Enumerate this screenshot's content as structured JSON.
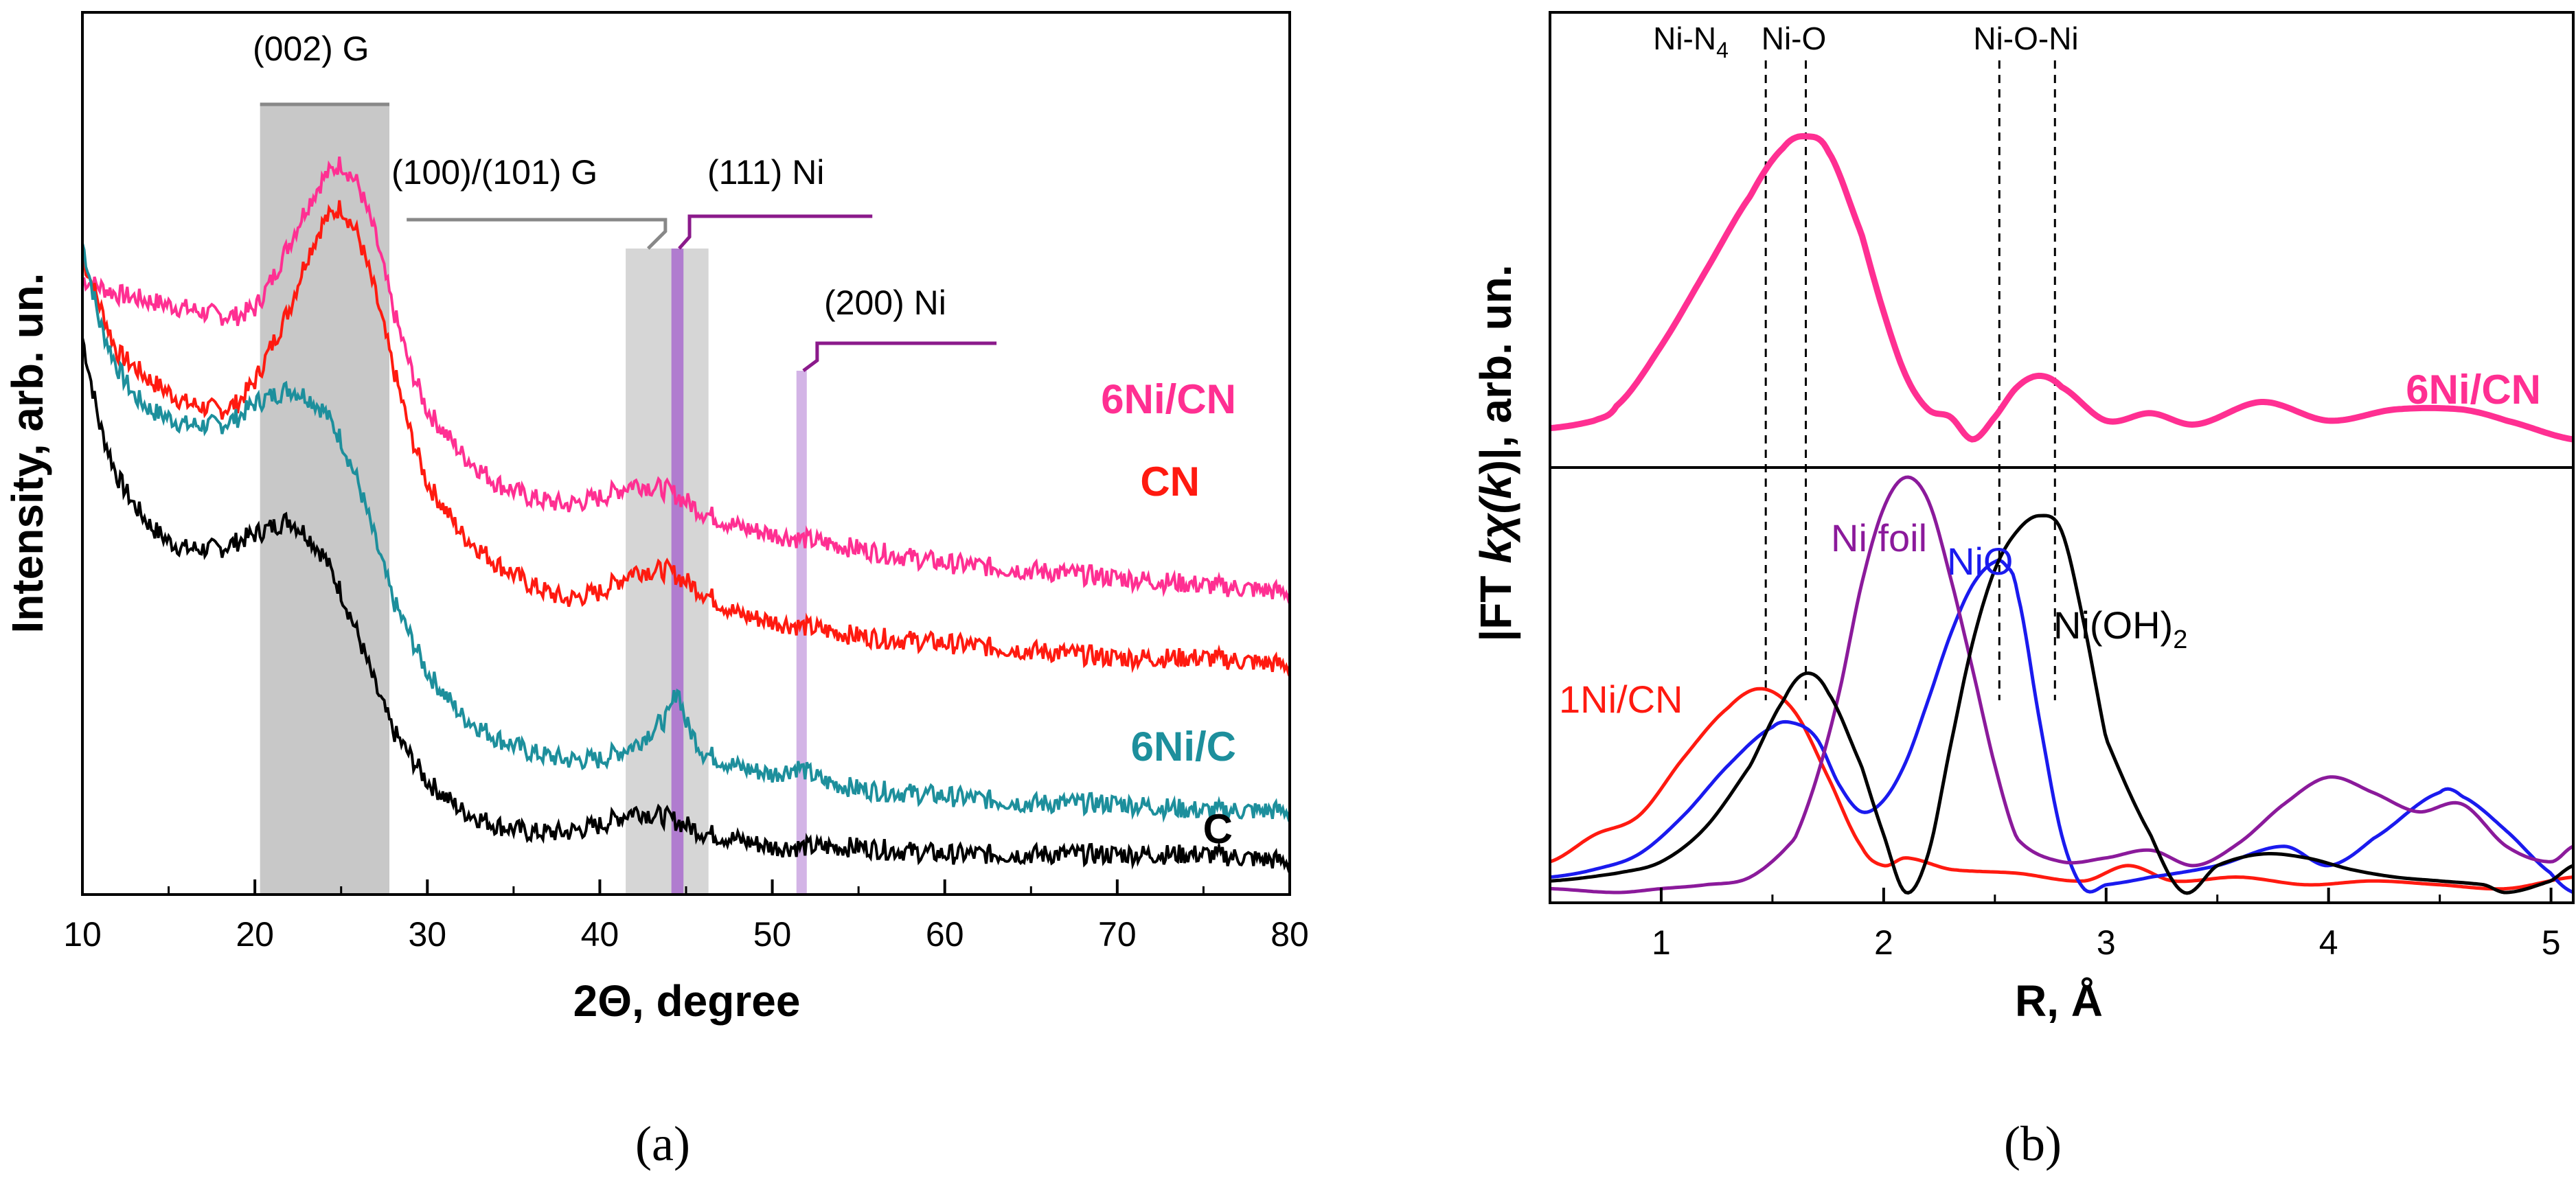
{
  "chart_data": [
    {
      "panel": "a",
      "type": "line",
      "caption": "(a)",
      "xlabel": "2Θ, degree",
      "ylabel": "Intensity, arb. un.",
      "xlim": [
        10,
        80
      ],
      "xticks": [
        "10",
        "20",
        "30",
        "40",
        "50",
        "60",
        "70",
        "80"
      ],
      "yticks": [],
      "colors": {
        "6Ni/CN": "#ff2f92",
        "CN": "#ff1a10",
        "6Ni/C": "#1d8f9c",
        "C": "#000000",
        "band": "#c8c8c8",
        "ni_band": "#b07ccf",
        "ni_line": "#8b1a8b",
        "g_line": "#888888"
      },
      "series": [
        {
          "name": "6Ni/CN",
          "x": [
            10,
            12,
            14,
            16,
            18,
            19,
            20,
            21,
            22,
            23,
            24,
            25,
            26,
            27,
            28,
            29,
            30,
            32,
            34,
            36,
            38,
            40,
            42,
            44,
            46,
            48,
            50,
            55,
            60,
            65,
            70,
            75,
            80
          ],
          "y": [
            0.8,
            0.78,
            0.77,
            0.76,
            0.75,
            0.75,
            0.76,
            0.8,
            0.85,
            0.9,
            0.94,
            0.96,
            0.93,
            0.86,
            0.76,
            0.68,
            0.62,
            0.56,
            0.52,
            0.5,
            0.49,
            0.5,
            0.52,
            0.51,
            0.48,
            0.46,
            0.45,
            0.43,
            0.41,
            0.4,
            0.39,
            0.38,
            0.37
          ]
        },
        {
          "name": "CN",
          "x": [
            10,
            12,
            14,
            16,
            18,
            19,
            20,
            21,
            22,
            23,
            24,
            25,
            26,
            27,
            28,
            29,
            30,
            32,
            34,
            36,
            38,
            40,
            42,
            44,
            46,
            48,
            50,
            55,
            60,
            65,
            70,
            75,
            80
          ],
          "y": [
            0.83,
            0.7,
            0.66,
            0.63,
            0.62,
            0.63,
            0.66,
            0.71,
            0.76,
            0.83,
            0.88,
            0.9,
            0.86,
            0.78,
            0.68,
            0.59,
            0.52,
            0.45,
            0.41,
            0.38,
            0.36,
            0.37,
            0.4,
            0.4,
            0.37,
            0.34,
            0.33,
            0.31,
            0.3,
            0.29,
            0.28,
            0.28,
            0.27
          ]
        },
        {
          "name": "6Ni/C",
          "x": [
            10,
            11,
            12,
            13,
            14,
            16,
            18,
            19,
            20,
            21,
            22,
            23,
            24,
            25,
            26,
            27,
            28,
            30,
            32,
            34,
            36,
            38,
            40,
            42,
            43,
            44,
            44.5,
            45,
            46,
            48,
            50,
            51.5,
            53,
            55,
            60,
            65,
            70,
            75,
            80
          ],
          "y": [
            0.85,
            0.74,
            0.68,
            0.64,
            0.62,
            0.6,
            0.6,
            0.61,
            0.63,
            0.64,
            0.65,
            0.64,
            0.62,
            0.58,
            0.52,
            0.44,
            0.36,
            0.26,
            0.2,
            0.17,
            0.15,
            0.14,
            0.14,
            0.16,
            0.18,
            0.2,
            0.24,
            0.19,
            0.15,
            0.13,
            0.12,
            0.13,
            0.11,
            0.1,
            0.09,
            0.08,
            0.08,
            0.07,
            0.07
          ]
        },
        {
          "name": "C",
          "x": [
            10,
            11,
            12,
            13,
            14,
            15,
            16,
            18,
            19,
            20,
            21,
            22,
            23,
            24,
            25,
            26,
            27,
            28,
            30,
            32,
            34,
            36,
            38,
            40,
            42,
            44,
            46,
            48,
            50,
            55,
            60,
            65,
            70,
            75,
            80
          ],
          "y": [
            0.72,
            0.6,
            0.53,
            0.49,
            0.46,
            0.44,
            0.43,
            0.43,
            0.44,
            0.45,
            0.46,
            0.47,
            0.45,
            0.42,
            0.37,
            0.31,
            0.24,
            0.18,
            0.11,
            0.07,
            0.05,
            0.04,
            0.04,
            0.05,
            0.07,
            0.06,
            0.04,
            0.03,
            0.02,
            0.02,
            0.01,
            0.01,
            0.01,
            0.01,
            0.0
          ]
        }
      ],
      "annotations": [
        {
          "text": "(002) G",
          "x_range": [
            20.3,
            27.8
          ]
        },
        {
          "text": "(100)/(101) G",
          "x_range": [
            41.5,
            46.3
          ]
        },
        {
          "text": "(111) Ni",
          "x": 44.5
        },
        {
          "text": "(200) Ni",
          "x": 51.7
        }
      ]
    },
    {
      "panel": "b",
      "type": "line",
      "caption": "(b)",
      "xlabel": "R, Å",
      "ylabel_prefix": "|FT ",
      "ylabel_k": "k",
      "ylabel_chi": "χ(",
      "ylabel_k2": "k",
      "ylabel_suffix": ")|, arb. un.",
      "xlim": [
        0.5,
        5.1
      ],
      "xticks": [
        "1",
        "2",
        "3",
        "4",
        "5"
      ],
      "yticks": [],
      "markers": [
        {
          "label": "Ni-N",
          "sub": "4",
          "x": 1.47
        },
        {
          "label": "Ni-O",
          "x": 1.65
        },
        {
          "label": "Ni-O-Ni",
          "x": 2.52
        },
        {
          "label": "",
          "x": 2.77
        }
      ],
      "top_series": [
        {
          "name": "6Ni/CN",
          "color": "#ff2f92",
          "x": [
            0.5,
            0.7,
            0.8,
            1.0,
            1.2,
            1.4,
            1.55,
            1.65,
            1.75,
            1.9,
            2.0,
            2.1,
            2.2,
            2.3,
            2.4,
            2.5,
            2.6,
            2.7,
            2.8,
            3.0,
            3.2,
            3.4,
            3.7,
            4.0,
            4.3,
            4.6,
            4.8,
            5.1
          ],
          "y": [
            0.03,
            0.05,
            0.09,
            0.25,
            0.45,
            0.65,
            0.78,
            0.81,
            0.77,
            0.55,
            0.34,
            0.17,
            0.08,
            0.06,
            0.0,
            0.06,
            0.14,
            0.17,
            0.14,
            0.05,
            0.07,
            0.04,
            0.1,
            0.05,
            0.08,
            0.08,
            0.05,
            0.0
          ]
        }
      ],
      "bottom_series": [
        {
          "name": "1Ni/CN",
          "color": "#ff1a10",
          "x": [
            0.5,
            0.7,
            0.9,
            1.1,
            1.3,
            1.45,
            1.6,
            1.75,
            1.9,
            2.0,
            2.1,
            2.3,
            2.6,
            2.9,
            3.1,
            3.3,
            3.6,
            3.9,
            4.2,
            4.5,
            4.8,
            5.1
          ],
          "y": [
            0.08,
            0.15,
            0.2,
            0.35,
            0.48,
            0.53,
            0.47,
            0.3,
            0.12,
            0.07,
            0.09,
            0.06,
            0.05,
            0.03,
            0.07,
            0.03,
            0.04,
            0.02,
            0.03,
            0.02,
            0.01,
            0.04
          ]
        },
        {
          "name": "NiO",
          "color": "#1a1aee",
          "x": [
            0.5,
            0.7,
            0.9,
            1.1,
            1.3,
            1.5,
            1.6,
            1.7,
            1.8,
            1.9,
            2.0,
            2.1,
            2.2,
            2.3,
            2.4,
            2.5,
            2.55,
            2.6,
            2.7,
            2.8,
            2.9,
            3.0,
            3.2,
            3.5,
            3.8,
            4.0,
            4.2,
            4.5,
            4.6,
            4.8,
            5.0,
            5.1
          ],
          "y": [
            0.04,
            0.06,
            0.1,
            0.2,
            0.33,
            0.43,
            0.44,
            0.4,
            0.28,
            0.21,
            0.24,
            0.34,
            0.5,
            0.67,
            0.8,
            0.86,
            0.85,
            0.78,
            0.45,
            0.15,
            0.01,
            0.02,
            0.04,
            0.07,
            0.12,
            0.07,
            0.14,
            0.26,
            0.25,
            0.16,
            0.05,
            0.0
          ]
        },
        {
          "name": "Ni foil",
          "color": "#8b1a9b",
          "x": [
            0.5,
            0.8,
            1.0,
            1.2,
            1.4,
            1.6,
            1.7,
            1.8,
            1.9,
            2.0,
            2.1,
            2.2,
            2.3,
            2.4,
            2.5,
            2.6,
            2.8,
            3.0,
            3.2,
            3.4,
            3.6,
            3.8,
            4.0,
            4.2,
            4.4,
            4.6,
            4.8,
            5.0,
            5.1
          ],
          "y": [
            0.01,
            0.0,
            0.01,
            0.02,
            0.04,
            0.14,
            0.3,
            0.52,
            0.8,
            1.0,
            1.08,
            1.02,
            0.82,
            0.58,
            0.33,
            0.14,
            0.08,
            0.09,
            0.11,
            0.07,
            0.13,
            0.23,
            0.3,
            0.26,
            0.21,
            0.23,
            0.12,
            0.08,
            0.12
          ]
        },
        {
          "name": "Ni(OH)2",
          "color": "#000000",
          "x": [
            0.5,
            0.8,
            1.0,
            1.2,
            1.4,
            1.55,
            1.65,
            1.75,
            1.9,
            2.0,
            2.1,
            2.2,
            2.3,
            2.4,
            2.5,
            2.6,
            2.7,
            2.8,
            2.9,
            3.0,
            3.2,
            3.35,
            3.5,
            3.7,
            3.9,
            4.1,
            4.3,
            4.5,
            4.7,
            4.8,
            5.0,
            5.1
          ],
          "y": [
            0.03,
            0.05,
            0.08,
            0.17,
            0.33,
            0.5,
            0.57,
            0.52,
            0.33,
            0.15,
            0.0,
            0.1,
            0.38,
            0.65,
            0.84,
            0.94,
            0.98,
            0.94,
            0.7,
            0.4,
            0.15,
            0.0,
            0.07,
            0.1,
            0.09,
            0.06,
            0.04,
            0.03,
            0.02,
            0.0,
            0.03,
            0.07
          ]
        }
      ],
      "labels": {
        "top": "6Ni/CN",
        "ni_oh2_main": "Ni(OH)",
        "ni_oh2_sub": "2"
      }
    }
  ]
}
